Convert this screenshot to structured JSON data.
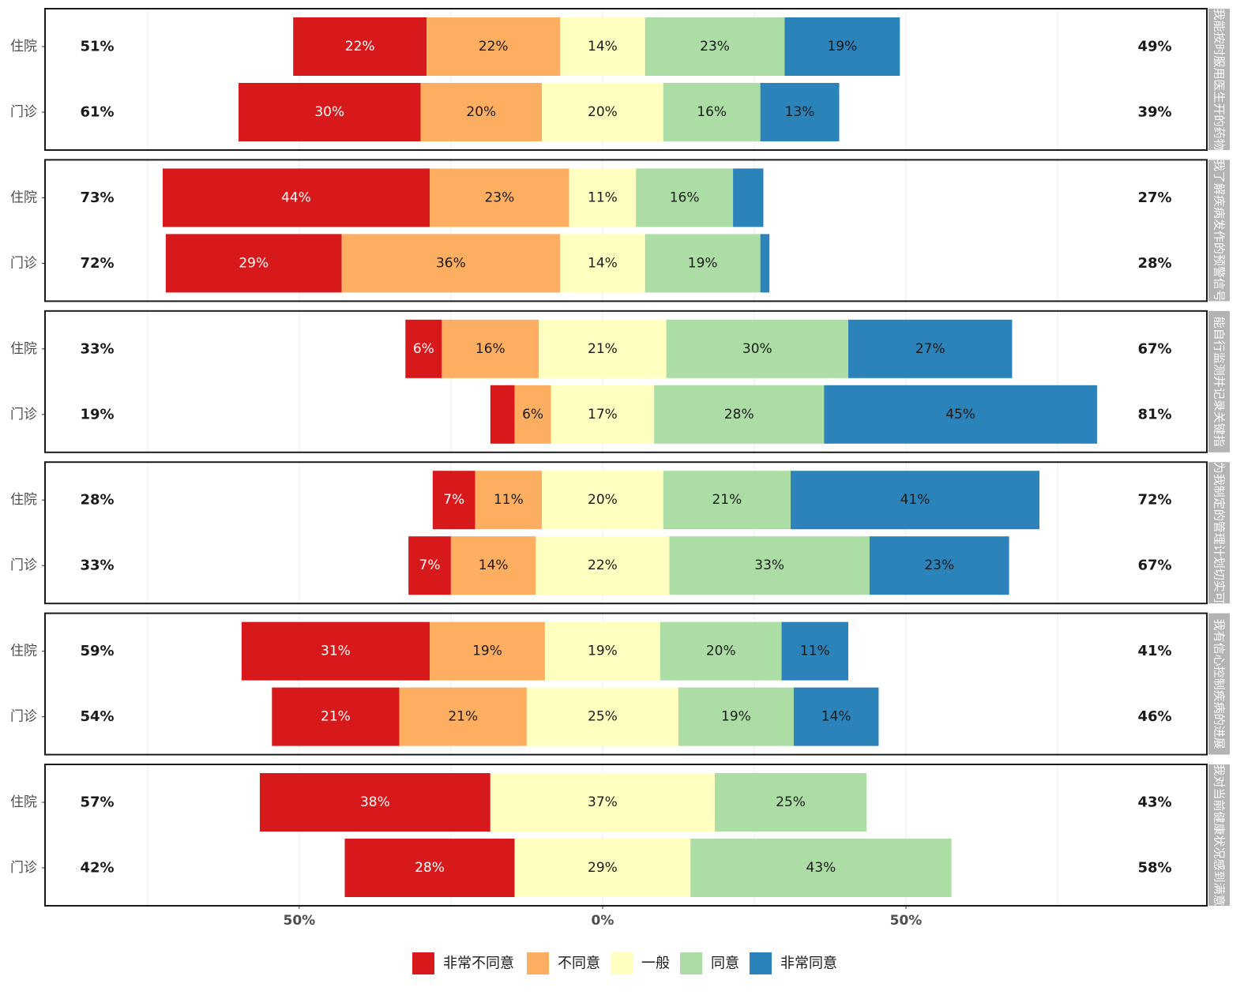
{
  "chart_data": {
    "type": "bar",
    "orientation": "horizontal",
    "stacking": "diverging",
    "xlim": [
      -91.9,
      99.6
    ],
    "x_ticks": [
      {
        "value": -50,
        "label": "50%"
      },
      {
        "value": 0,
        "label": "0%"
      },
      {
        "value": 50,
        "label": "50%"
      }
    ],
    "grid": true,
    "legend": "bottom",
    "levels": [
      {
        "name": "非常不同意",
        "color": "#d7191c",
        "text_color": "#ffffff"
      },
      {
        "name": "不同意",
        "color": "#fdae61",
        "text_color": "#1a1a1a"
      },
      {
        "name": "一般",
        "color": "#ffffbf",
        "text_color": "#1a1a1a"
      },
      {
        "name": "同意",
        "color": "#abdda4",
        "text_color": "#1a1a1a"
      },
      {
        "name": "非常同意",
        "color": "#2b83ba",
        "text_color": "#1a1a1a"
      }
    ],
    "facets": [
      {
        "label": "我能按时服用医生开的药物",
        "rows": [
          {
            "group": "住院",
            "values": [
              22,
              22,
              14,
              23,
              19
            ],
            "labels": [
              "22%",
              "22%",
              "14%",
              "23%",
              "19%"
            ],
            "disagree_total": "51%",
            "agree_total": "49%"
          },
          {
            "group": "门诊",
            "values": [
              30,
              20,
              20,
              16,
              13
            ],
            "labels": [
              "30%",
              "20%",
              "20%",
              "16%",
              "13%"
            ],
            "disagree_total": "61%",
            "agree_total": "39%"
          }
        ]
      },
      {
        "label": "我了解疾病发作的预警信号",
        "rows": [
          {
            "group": "住院",
            "values": [
              44,
              23,
              11,
              16,
              5
            ],
            "labels": [
              "44%",
              "23%",
              "11%",
              "16%",
              ""
            ],
            "disagree_total": "73%",
            "agree_total": "27%"
          },
          {
            "group": "门诊",
            "values": [
              29,
              36,
              14,
              19,
              1.5
            ],
            "labels": [
              "29%",
              "36%",
              "14%",
              "19%",
              ""
            ],
            "disagree_total": "72%",
            "agree_total": "28%"
          }
        ]
      },
      {
        "label": "能自行监测并记录关键指",
        "rows": [
          {
            "group": "住院",
            "values": [
              6,
              16,
              21,
              30,
              27
            ],
            "labels": [
              "6%",
              "16%",
              "21%",
              "30%",
              "27%"
            ],
            "disagree_total": "33%",
            "agree_total": "67%"
          },
          {
            "group": "门诊",
            "values": [
              4,
              6,
              17,
              28,
              45
            ],
            "labels": [
              "",
              "6%",
              "17%",
              "28%",
              "45%"
            ],
            "disagree_total": "19%",
            "agree_total": "81%"
          }
        ]
      },
      {
        "label": "为我制定的管理计划切实可",
        "rows": [
          {
            "group": "住院",
            "values": [
              7,
              11,
              20,
              21,
              41
            ],
            "labels": [
              "7%",
              "11%",
              "20%",
              "21%",
              "41%"
            ],
            "disagree_total": "28%",
            "agree_total": "72%"
          },
          {
            "group": "门诊",
            "values": [
              7,
              14,
              22,
              33,
              23
            ],
            "labels": [
              "7%",
              "14%",
              "22%",
              "33%",
              "23%"
            ],
            "disagree_total": "33%",
            "agree_total": "67%"
          }
        ]
      },
      {
        "label": "我有信心控制疾病的进展",
        "rows": [
          {
            "group": "住院",
            "values": [
              31,
              19,
              19,
              20,
              11
            ],
            "labels": [
              "31%",
              "19%",
              "19%",
              "20%",
              "11%"
            ],
            "disagree_total": "59%",
            "agree_total": "41%"
          },
          {
            "group": "门诊",
            "values": [
              21,
              21,
              25,
              19,
              14
            ],
            "labels": [
              "21%",
              "21%",
              "25%",
              "19%",
              "14%"
            ],
            "disagree_total": "54%",
            "agree_total": "46%"
          }
        ]
      },
      {
        "label": "我对当前健康状况感到满意",
        "rows": [
          {
            "group": "住院",
            "values": [
              38,
              0,
              37,
              25,
              0
            ],
            "labels": [
              "38%",
              "",
              "37%",
              "25%",
              ""
            ],
            "disagree_total": "57%",
            "agree_total": "43%"
          },
          {
            "group": "门诊",
            "values": [
              28,
              0,
              29,
              43,
              0
            ],
            "labels": [
              "28%",
              "",
              "29%",
              "43%",
              ""
            ],
            "disagree_total": "42%",
            "agree_total": "58%"
          }
        ]
      }
    ]
  }
}
